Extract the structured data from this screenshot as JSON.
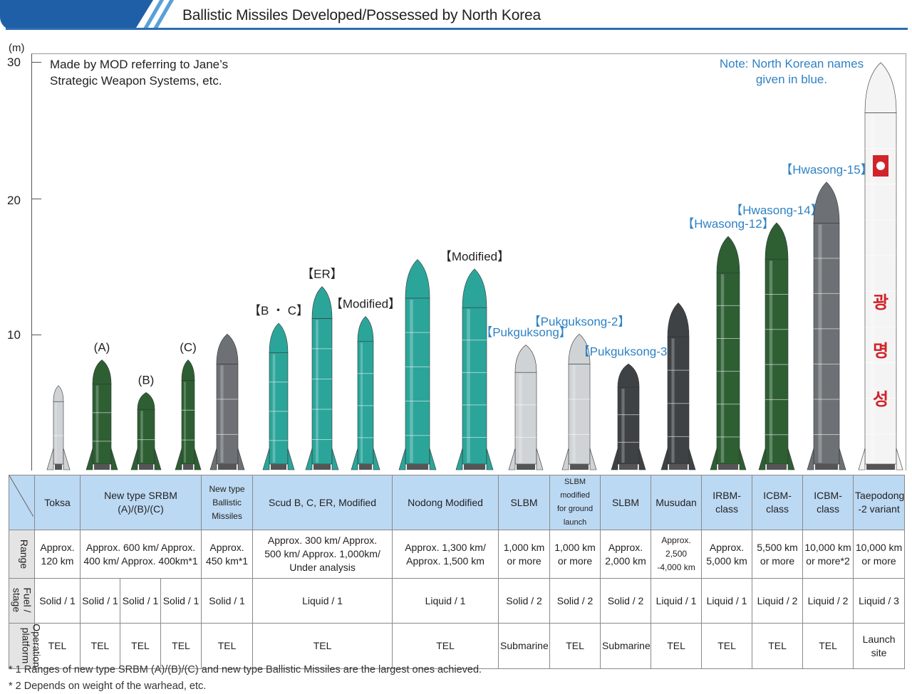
{
  "page": {
    "title": "Ballistic Missiles Developed/Possessed by North Korea"
  },
  "chart": {
    "unit": "(m)",
    "y_ticks": [
      "30",
      "20",
      "10"
    ],
    "source_note": [
      "Made by MOD referring to Jane’s",
      "Strategic Weapon Systems, etc."
    ],
    "names_note": [
      "Note: North Korean names",
      "given in blue."
    ],
    "colors": {
      "dark_green": "#2d5f33",
      "teal": "#2ba59a",
      "silver": "#cfd3d6",
      "gray": "#6d7175",
      "dark_gray": "#3e4245",
      "blue_label": "#2f82c4",
      "header_blue": "#1f5fa8",
      "table_head": "#bcd9f3"
    }
  },
  "chart_data": {
    "type": "bar",
    "ylabel": "(m)",
    "ylim": [
      0,
      30
    ],
    "yticks": [
      10,
      20,
      30
    ],
    "missiles": [
      {
        "label": "",
        "label_color": "black",
        "height": 6.2,
        "style": "silver-small"
      },
      {
        "label": "(A)",
        "label_color": "black",
        "height": 8.1,
        "style": "dark-green"
      },
      {
        "label": "(B)",
        "label_color": "black",
        "height": 5.7,
        "style": "dark-green"
      },
      {
        "label": "(C)",
        "label_color": "black",
        "height": 8.1,
        "style": "dark-green-thin"
      },
      {
        "label": "",
        "label_color": "black",
        "height": 10.0,
        "style": "gray-checker"
      },
      {
        "label": "【B ・ C】",
        "label_color": "black",
        "height": 10.8,
        "style": "teal"
      },
      {
        "label": "【ER】",
        "label_color": "black",
        "height": 13.5,
        "style": "teal"
      },
      {
        "label": "【Modified】",
        "label_color": "black",
        "height": 11.3,
        "style": "teal-narrow"
      },
      {
        "label": "",
        "label_color": "black",
        "height": 15.5,
        "style": "teal-large"
      },
      {
        "label": "【Modified】",
        "label_color": "black",
        "height": 14.8,
        "style": "teal-large"
      },
      {
        "label": "【Pukguksong】",
        "label_color": "blue",
        "height": 9.2,
        "style": "silver-slbm"
      },
      {
        "label": "【Pukguksong-2】",
        "label_color": "blue",
        "height": 10.0,
        "style": "silver-slbm"
      },
      {
        "label": "【Pukguksong-3】",
        "label_color": "blue",
        "height": 7.8,
        "style": "dark-slbm"
      },
      {
        "label": "",
        "label_color": "black",
        "height": 12.3,
        "style": "dark-gray"
      },
      {
        "label": "【Hwasong-12】",
        "label_color": "blue",
        "height": 17.2,
        "style": "dark-green-tall"
      },
      {
        "label": "【Hwasong-14】",
        "label_color": "blue",
        "height": 18.2,
        "style": "dark-green-tall"
      },
      {
        "label": "【Hwasong-15】",
        "label_color": "blue",
        "height": 21.2,
        "style": "gray-tall"
      },
      {
        "label": "",
        "label_color": "black",
        "height": 30.0,
        "style": "white-rocket",
        "body_text": [
          "광",
          "명",
          "성"
        ]
      }
    ]
  },
  "table": {
    "columns": [
      "Toksa",
      "New type SRBM (A)/(B)/(C)",
      "New type Ballistic Missiles",
      "Scud B, C, ER, Modified",
      "Nodong Modified",
      "SLBM",
      "SLBM modified for ground launch",
      "SLBM",
      "Musudan",
      "IRBM-class",
      "ICBM-class",
      "ICBM-class",
      "Taepodong -2 variant"
    ],
    "header": {
      "toksa": "Toksa",
      "srbm_1": "New type SRBM",
      "srbm_2": "(A)/(B)/(C)",
      "nbm_1": "New type",
      "nbm_2": "Ballistic",
      "nbm_3": "Missiles",
      "scud": "Scud B, C, ER, Modified",
      "nodong": "Nodong Modified",
      "slbm1": "SLBM",
      "slbmg_1": "SLBM modified",
      "slbmg_2": "for ground",
      "slbmg_3": "launch",
      "slbm2": "SLBM",
      "musudan": "Musudan",
      "irbm_1": "IRBM-",
      "irbm_2": "class",
      "icbm1_1": "ICBM-",
      "icbm1_2": "class",
      "icbm2_1": "ICBM-",
      "icbm2_2": "class",
      "tpd_1": "Taepodong",
      "tpd_2": "-2 variant"
    },
    "row_labels": {
      "range": "Range",
      "fuel_1": "Fuel /",
      "fuel_2": "stage",
      "platform_1": "Operation",
      "platform_2": "platform"
    },
    "range": {
      "toksa_1": "Approx.",
      "toksa_2": "120 km",
      "srbm_1": "Approx. 600 km/ Approx.",
      "srbm_2": "400 km/ Approx. 400km*1",
      "nbm_1": "Approx.",
      "nbm_2": "450 km*1",
      "scud_1": "Approx. 300 km/ Approx.",
      "scud_2": "500 km/ Approx. 1,000km/",
      "scud_3": "Under analysis",
      "nodong_1": "Approx. 1,300 km/",
      "nodong_2": "Approx. 1,500 km",
      "slbm1_1": "1,000 km",
      "slbm1_2": "or more",
      "slbmg_1": "1,000 km",
      "slbmg_2": "or more",
      "slbm2_1": "Approx.",
      "slbm2_2": "2,000 km",
      "musudan_1": "Approx. 2,500",
      "musudan_2": "-4,000 km",
      "irbm_1": "Approx.",
      "irbm_2": "5,000 km",
      "icbm1_1": "5,500 km",
      "icbm1_2": "or more",
      "icbm2_1": "10,000 km",
      "icbm2_2": "or more*2",
      "tpd_1": "10,000 km",
      "tpd_2": "or more"
    },
    "fuel": [
      "Solid / 1",
      "Solid / 1",
      "Solid / 1",
      "Solid / 1",
      "Solid / 1",
      "Liquid / 1",
      "Liquid / 1",
      "Solid / 2",
      "Solid / 2",
      "Solid / 2",
      "Liquid / 1",
      "Liquid / 1",
      "Liquid / 2",
      "Liquid / 2",
      "Liquid / 3"
    ],
    "platform": [
      "TEL",
      "TEL",
      "TEL",
      "TEL",
      "TEL",
      "TEL",
      "TEL",
      "Submarine",
      "TEL",
      "Submarine",
      "TEL",
      "TEL",
      "TEL",
      "TEL"
    ],
    "platform_last_1": "Launch",
    "platform_last_2": "site"
  },
  "footnotes": [
    "* 1 Ranges of new type SRBM (A)/(B)/(C) and new type Ballistic Missiles are the largest ones achieved.",
    "* 2 Depends on weight of the warhead, etc."
  ]
}
